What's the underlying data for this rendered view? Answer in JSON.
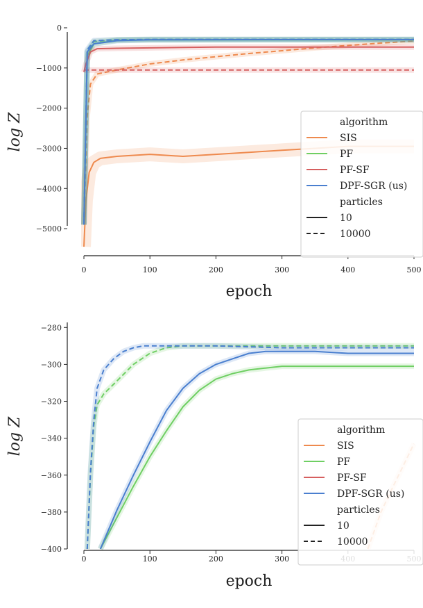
{
  "chart_data": [
    {
      "type": "line",
      "xlabel": "epoch",
      "ylabel": "log Z",
      "xlim": [
        0,
        500
      ],
      "ylim": [
        -5500,
        0
      ],
      "xticks": [
        "0",
        "100",
        "200",
        "300",
        "400",
        "500"
      ],
      "yticks": [
        "0",
        "−1000",
        "−2000",
        "−3000",
        "−4000",
        "−5000"
      ],
      "ytick_values": [
        0,
        -1000,
        -2000,
        -3000,
        -4000,
        -5000
      ],
      "xtick_values": [
        0,
        100,
        200,
        300,
        400,
        500
      ],
      "legend": {
        "position": "right",
        "algorithm_title": "algorithm",
        "algorithms": [
          {
            "name": "SIS",
            "color": "#ee8a4e"
          },
          {
            "name": "PF",
            "color": "#6fcf63"
          },
          {
            "name": "PF-SF",
            "color": "#d65f5f"
          },
          {
            "name": "DPF-SGR (us)",
            "color": "#4a7fcf"
          }
        ],
        "particles_title": "particles",
        "particles": [
          {
            "name": "10",
            "style": "solid"
          },
          {
            "name": "10000",
            "style": "dashed"
          }
        ]
      },
      "series": [
        {
          "algorithm": "SIS",
          "particles": "10",
          "x": [
            0,
            3,
            8,
            15,
            25,
            50,
            100,
            150,
            200,
            250,
            300,
            350,
            400,
            450,
            500
          ],
          "y": [
            -5450,
            -4300,
            -3600,
            -3350,
            -3250,
            -3200,
            -3150,
            -3200,
            -3150,
            -3100,
            -3050,
            -3000,
            -2950,
            -2950,
            -2950
          ]
        },
        {
          "algorithm": "SIS",
          "particles": "10000",
          "x": [
            0,
            5,
            10,
            20,
            50,
            100,
            150,
            200,
            250,
            300,
            350,
            400,
            450,
            500
          ],
          "y": [
            -4900,
            -2200,
            -1400,
            -1150,
            -1050,
            -900,
            -800,
            -720,
            -640,
            -570,
            -500,
            -440,
            -380,
            -330
          ]
        },
        {
          "algorithm": "PF",
          "particles": "10",
          "x": [
            0,
            5,
            15,
            50,
            100,
            200,
            300,
            400,
            500
          ],
          "y": [
            -4900,
            -700,
            -400,
            -310,
            -300,
            -300,
            -300,
            -300,
            -300
          ]
        },
        {
          "algorithm": "PF",
          "particles": "10000",
          "x": [
            0,
            5,
            15,
            50,
            100,
            200,
            300,
            400,
            500
          ],
          "y": [
            -4900,
            -600,
            -340,
            -300,
            -290,
            -290,
            -290,
            -290,
            -290
          ]
        },
        {
          "algorithm": "PF-SF",
          "particles": "10",
          "x": [
            0,
            3,
            10,
            20,
            50,
            100,
            150,
            200,
            300,
            400,
            500
          ],
          "y": [
            -1100,
            -900,
            -600,
            -520,
            -510,
            -500,
            -490,
            -480,
            -480,
            -480,
            -480
          ]
        },
        {
          "algorithm": "PF-SF",
          "particles": "10000",
          "x": [
            0,
            500
          ],
          "y": [
            -1050,
            -1050
          ]
        },
        {
          "algorithm": "DPF-SGR (us)",
          "particles": "10",
          "x": [
            0,
            5,
            15,
            50,
            100,
            200,
            300,
            400,
            500
          ],
          "y": [
            -4900,
            -600,
            -400,
            -320,
            -300,
            -295,
            -294,
            -294,
            -294
          ]
        },
        {
          "algorithm": "DPF-SGR (us)",
          "particles": "10000",
          "x": [
            0,
            5,
            15,
            50,
            100,
            200,
            300,
            400,
            500
          ],
          "y": [
            -4900,
            -550,
            -320,
            -295,
            -290,
            -290,
            -290,
            -290,
            -290
          ]
        }
      ]
    },
    {
      "type": "line",
      "xlabel": "epoch",
      "ylabel": "log Z",
      "xlim": [
        0,
        500
      ],
      "ylim": [
        -400,
        -275
      ],
      "xticks": [
        "0",
        "100",
        "200",
        "300",
        "400",
        "500"
      ],
      "yticks": [
        "−280",
        "−300",
        "−320",
        "−340",
        "−360",
        "−380",
        "−400"
      ],
      "ytick_values": [
        -280,
        -300,
        -320,
        -340,
        -360,
        -380,
        -400
      ],
      "xtick_values": [
        0,
        100,
        200,
        300,
        400,
        500
      ],
      "legend": {
        "position": "right",
        "algorithm_title": "algorithm",
        "algorithms": [
          {
            "name": "SIS",
            "color": "#ee8a4e"
          },
          {
            "name": "PF",
            "color": "#6fcf63"
          },
          {
            "name": "PF-SF",
            "color": "#d65f5f"
          },
          {
            "name": "DPF-SGR (us)",
            "color": "#4a7fcf"
          }
        ],
        "particles_title": "particles",
        "particles": [
          {
            "name": "10",
            "style": "solid"
          },
          {
            "name": "10000",
            "style": "dashed"
          }
        ]
      },
      "series": [
        {
          "algorithm": "SIS",
          "particles": "10000",
          "x": [
            430,
            450,
            470,
            500
          ],
          "y": [
            -400,
            -380,
            -365,
            -343
          ]
        },
        {
          "algorithm": "PF",
          "particles": "10",
          "x": [
            25,
            50,
            75,
            100,
            125,
            150,
            175,
            200,
            225,
            250,
            275,
            300,
            350,
            400,
            450,
            500
          ],
          "y": [
            -400,
            -383,
            -366,
            -350,
            -336,
            -323,
            -314,
            -308,
            -305,
            -303,
            -302,
            -301,
            -301,
            -301,
            -301,
            -301
          ]
        },
        {
          "algorithm": "PF",
          "particles": "10000",
          "x": [
            5,
            10,
            15,
            20,
            30,
            50,
            75,
            100,
            125,
            150,
            200,
            300,
            400,
            500
          ],
          "y": [
            -400,
            -360,
            -333,
            -322,
            -316,
            -309,
            -300,
            -294,
            -291,
            -290,
            -290,
            -290,
            -290,
            -290
          ]
        },
        {
          "algorithm": "DPF-SGR (us)",
          "particles": "10",
          "x": [
            25,
            50,
            75,
            100,
            125,
            150,
            175,
            200,
            225,
            250,
            275,
            300,
            350,
            400,
            450,
            500
          ],
          "y": [
            -400,
            -379,
            -360,
            -342,
            -325,
            -313,
            -305,
            -300,
            -297,
            -294,
            -293,
            -293,
            -293,
            -294,
            -294,
            -294
          ]
        },
        {
          "algorithm": "DPF-SGR (us)",
          "particles": "10000",
          "x": [
            5,
            10,
            15,
            20,
            30,
            45,
            60,
            75,
            90,
            110,
            150,
            200,
            300,
            400,
            500
          ],
          "y": [
            -400,
            -358,
            -330,
            -313,
            -303,
            -297,
            -293,
            -291,
            -290,
            -290,
            -290,
            -290,
            -291,
            -291,
            -291
          ]
        }
      ]
    }
  ]
}
